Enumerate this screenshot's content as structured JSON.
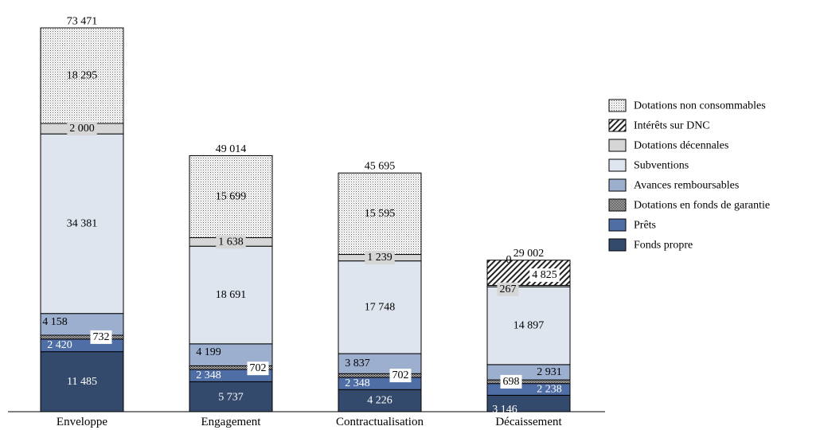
{
  "chart_data": {
    "type": "bar",
    "stacked": true,
    "categories": [
      "Enveloppe",
      "Engagement",
      "Contractualisation",
      "Décaissement"
    ],
    "totals": [
      "73 471",
      "49 014",
      "45 695",
      "29 002"
    ],
    "series": [
      {
        "name": "Fonds propre",
        "key": "fp",
        "values": [
          11485,
          5737,
          4226,
          3146
        ],
        "labels": [
          "11 485",
          "5 737",
          "4 226",
          "3 146"
        ],
        "color": "#344a6c",
        "pattern": "solid"
      },
      {
        "name": "Prêts",
        "key": "pr",
        "values": [
          2420,
          2348,
          2348,
          2238
        ],
        "labels": [
          "2 420",
          "2 348",
          "2 348",
          "2 238"
        ],
        "color": "#4f6ea6",
        "pattern": "solid"
      },
      {
        "name": "Dotations en fonds de garantie",
        "key": "dfg",
        "values": [
          732,
          702,
          702,
          698
        ],
        "labels": [
          "732",
          "702",
          "702",
          "698"
        ],
        "color": "#1e1e1e",
        "pattern": "checker"
      },
      {
        "name": "Avances remboursables",
        "key": "av",
        "values": [
          4158,
          4199,
          3837,
          2931
        ],
        "labels": [
          "4 158",
          "4 199",
          "3 837",
          "2 931"
        ],
        "color": "#9dafcf",
        "pattern": "solid"
      },
      {
        "name": "Subventions",
        "key": "sub",
        "values": [
          34381,
          18691,
          17748,
          14897
        ],
        "labels": [
          "34 381",
          "18 691",
          "17 748",
          "14 897"
        ],
        "color": "#dfe5ef",
        "pattern": "solid"
      },
      {
        "name": "Dotations décennales",
        "key": "dd",
        "values": [
          2000,
          1638,
          1239,
          267
        ],
        "labels": [
          "2 000",
          "1 638",
          "1 239",
          "267"
        ],
        "color": "#d6d6d6",
        "pattern": "solid"
      },
      {
        "name": "Intérêts sur DNC",
        "key": "int",
        "values": [
          0,
          0,
          0,
          4825
        ],
        "labels": [
          "",
          "",
          "",
          "4 825"
        ],
        "color": "#ffffff",
        "pattern": "diagonal"
      },
      {
        "name": "Dotations non consommables",
        "key": "dnc",
        "values": [
          18295,
          15699,
          15595,
          0
        ],
        "labels": [
          "18 295",
          "15 699",
          "15 595",
          "0"
        ],
        "color": "#ffffff",
        "pattern": "dots"
      }
    ],
    "legend_order": [
      "Dotations non consommables",
      "Intérêts sur DNC",
      "Dotations décennales",
      "Subventions",
      "Avances remboursables",
      "Dotations en fonds de garantie",
      "Prêts",
      "Fonds propre"
    ],
    "legend_position": "right",
    "ylim": [
      0,
      73471
    ],
    "grid": false,
    "xlabel": "",
    "ylabel": ""
  }
}
